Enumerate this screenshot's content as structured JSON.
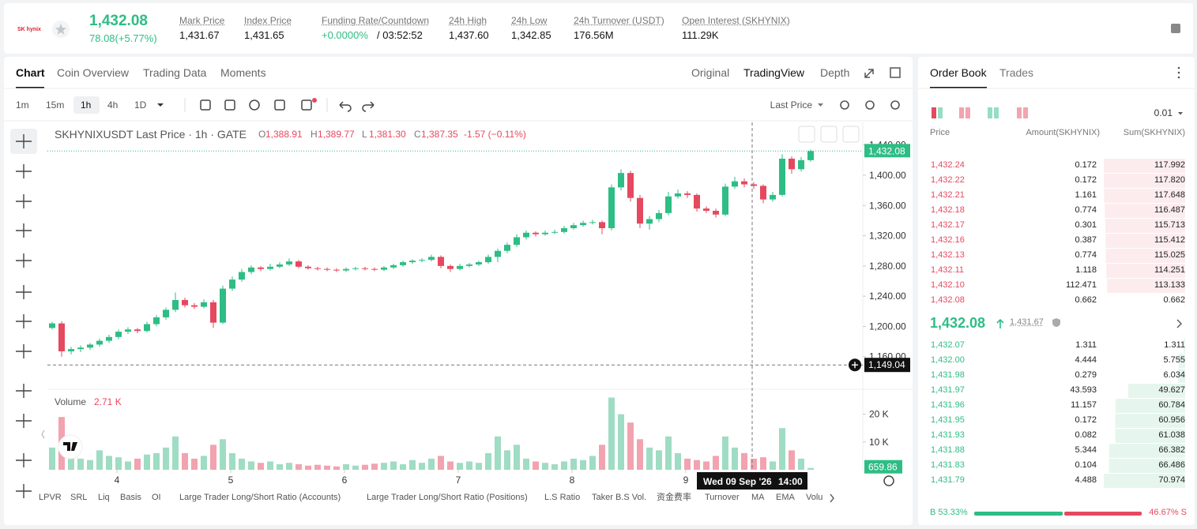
{
  "header": {
    "logo": "SK hynix",
    "price": "1,432.08",
    "change": "78.08(+5.77%)",
    "stats": [
      {
        "label": "Mark Price",
        "value": "1,431.67"
      },
      {
        "label": "Index Price",
        "value": "1,431.65"
      },
      {
        "label": "Funding Rate/Countdown",
        "value": "+0.0000%",
        "extra": "/ 03:52:52"
      },
      {
        "label": "24h High",
        "value": "1,437.60"
      },
      {
        "label": "24h Low",
        "value": "1,342.85"
      },
      {
        "label": "24h Turnover (USDT)",
        "value": "176.56M"
      },
      {
        "label": "Open Interest (SKHYNIX)",
        "value": "111.29K"
      }
    ]
  },
  "chart_tabs": [
    "Chart",
    "Coin Overview",
    "Trading Data",
    "Moments"
  ],
  "view_tabs": [
    "Original",
    "TradingView",
    "Depth"
  ],
  "intervals": [
    "1m",
    "15m",
    "1h",
    "4h",
    "1D"
  ],
  "price_source": "Last Price",
  "indicators": [
    "LPVR",
    "SRL",
    "Liq",
    "Basis",
    "OI",
    "Large Trader Long/Short Ratio (Accounts)",
    "Large Trader Long/Short Ratio (Positions)",
    "L.S Ratio",
    "Taker B.S Vol.",
    "资金费率",
    "Turnover",
    "MA",
    "EMA",
    "Volu"
  ],
  "chart_data": {
    "type": "candlestick",
    "title": "SKHYNIXUSDT Last Price · 1h · GATE",
    "legend": [
      {
        "key": "O",
        "value": "1,388.91"
      },
      {
        "key": "H",
        "value": "1,389.77"
      },
      {
        "key": "L",
        "value": "1,381.30"
      },
      {
        "key": "C",
        "value": "1,387.35"
      }
    ],
    "legend_change": "-1.57 (−0.11%)",
    "up_color": "#2ebd85",
    "down_color": "#e5495f",
    "ylim": [
      1120,
      1470
    ],
    "yticks": [
      {
        "value": 1160,
        "label": "1,160.00"
      },
      {
        "value": 1200,
        "label": "1,200.00"
      },
      {
        "value": 1240,
        "label": "1,240.00"
      },
      {
        "value": 1280,
        "label": "1,280.00"
      },
      {
        "value": 1320,
        "label": "1,320.00"
      },
      {
        "value": 1360,
        "label": "1,360.00"
      },
      {
        "value": 1400,
        "label": "1,400.00"
      },
      {
        "value": 1440,
        "label": "1,440.00"
      }
    ],
    "grid": false,
    "xticks": [
      4,
      5,
      6,
      7,
      8,
      9
    ],
    "last_price": {
      "value": 1432.08,
      "label": "1,432.08"
    },
    "crosshair": {
      "price": 1149.04,
      "price_label": "1,149.04",
      "date": "Wed 09 Sep '26",
      "time": "14:00"
    },
    "candles": [
      [
        1198,
        1206,
        1196,
        1204
      ],
      [
        1204,
        1207,
        1160,
        1167
      ],
      [
        1167,
        1173,
        1163,
        1170
      ],
      [
        1170,
        1175,
        1166,
        1172
      ],
      [
        1172,
        1178,
        1169,
        1176
      ],
      [
        1176,
        1184,
        1173,
        1181
      ],
      [
        1181,
        1189,
        1178,
        1186
      ],
      [
        1186,
        1196,
        1183,
        1193
      ],
      [
        1193,
        1199,
        1190,
        1196
      ],
      [
        1196,
        1198,
        1191,
        1194
      ],
      [
        1194,
        1206,
        1192,
        1203
      ],
      [
        1203,
        1215,
        1200,
        1212
      ],
      [
        1212,
        1225,
        1209,
        1222
      ],
      [
        1222,
        1245,
        1219,
        1235
      ],
      [
        1235,
        1238,
        1225,
        1228
      ],
      [
        1228,
        1231,
        1223,
        1226
      ],
      [
        1226,
        1236,
        1224,
        1232
      ],
      [
        1232,
        1235,
        1198,
        1205
      ],
      [
        1205,
        1254,
        1203,
        1250
      ],
      [
        1250,
        1266,
        1247,
        1262
      ],
      [
        1262,
        1276,
        1259,
        1272
      ],
      [
        1272,
        1281,
        1269,
        1278
      ],
      [
        1278,
        1280,
        1273,
        1276
      ],
      [
        1276,
        1283,
        1274,
        1279
      ],
      [
        1279,
        1285,
        1277,
        1282
      ],
      [
        1282,
        1290,
        1280,
        1286
      ],
      [
        1286,
        1288,
        1277,
        1279
      ],
      [
        1279,
        1281,
        1275,
        1277
      ],
      [
        1277,
        1279,
        1274,
        1276
      ],
      [
        1276,
        1278,
        1273,
        1275
      ],
      [
        1275,
        1277,
        1272,
        1274
      ],
      [
        1274,
        1278,
        1272,
        1276
      ],
      [
        1276,
        1279,
        1274,
        1277
      ],
      [
        1277,
        1279,
        1274,
        1276
      ],
      [
        1276,
        1278,
        1273,
        1275
      ],
      [
        1275,
        1280,
        1273,
        1278
      ],
      [
        1278,
        1283,
        1276,
        1281
      ],
      [
        1281,
        1287,
        1279,
        1285
      ],
      [
        1285,
        1289,
        1283,
        1287
      ],
      [
        1287,
        1290,
        1285,
        1288
      ],
      [
        1288,
        1295,
        1286,
        1292
      ],
      [
        1292,
        1294,
        1277,
        1280
      ],
      [
        1280,
        1282,
        1272,
        1276
      ],
      [
        1276,
        1283,
        1274,
        1280
      ],
      [
        1280,
        1284,
        1278,
        1282
      ],
      [
        1282,
        1287,
        1280,
        1285
      ],
      [
        1285,
        1295,
        1283,
        1292
      ],
      [
        1292,
        1303,
        1285,
        1300
      ],
      [
        1300,
        1311,
        1297,
        1308
      ],
      [
        1308,
        1322,
        1305,
        1318
      ],
      [
        1318,
        1327,
        1315,
        1324
      ],
      [
        1324,
        1326,
        1319,
        1322
      ],
      [
        1322,
        1327,
        1320,
        1324
      ],
      [
        1324,
        1328,
        1322,
        1325
      ],
      [
        1325,
        1333,
        1323,
        1330
      ],
      [
        1330,
        1337,
        1328,
        1334
      ],
      [
        1334,
        1340,
        1332,
        1337
      ],
      [
        1337,
        1341,
        1335,
        1338
      ],
      [
        1338,
        1340,
        1322,
        1330
      ],
      [
        1330,
        1388,
        1327,
        1384
      ],
      [
        1384,
        1408,
        1380,
        1403
      ],
      [
        1403,
        1406,
        1365,
        1370
      ],
      [
        1370,
        1374,
        1330,
        1336
      ],
      [
        1336,
        1346,
        1328,
        1342
      ],
      [
        1342,
        1354,
        1338,
        1350
      ],
      [
        1350,
        1378,
        1347,
        1372
      ],
      [
        1372,
        1381,
        1369,
        1376
      ],
      [
        1376,
        1379,
        1370,
        1374
      ],
      [
        1374,
        1376,
        1352,
        1356
      ],
      [
        1356,
        1359,
        1350,
        1353
      ],
      [
        1353,
        1356,
        1344,
        1348
      ],
      [
        1348,
        1389,
        1346,
        1385
      ],
      [
        1385,
        1398,
        1382,
        1392
      ],
      [
        1392,
        1396,
        1384,
        1388
      ],
      [
        1388,
        1391,
        1382,
        1386
      ],
      [
        1386,
        1388,
        1363,
        1368
      ],
      [
        1368,
        1378,
        1365,
        1374
      ],
      [
        1374,
        1428,
        1372,
        1422
      ],
      [
        1422,
        1425,
        1402,
        1408
      ],
      [
        1408,
        1424,
        1405,
        1420
      ],
      [
        1420,
        1434,
        1418,
        1432.08
      ]
    ],
    "volume": {
      "title": "Volume",
      "current": "2.71 K",
      "up_color": "#9fdcc4",
      "down_color": "#f2a3b0",
      "ylim": [
        0,
        27000
      ],
      "yticks": [
        {
          "value": 10000,
          "label": "10 K"
        },
        {
          "value": 20000,
          "label": "20 K"
        }
      ],
      "values": [
        8000,
        19000,
        6000,
        4000,
        3500,
        7000,
        5000,
        4500,
        3000,
        4000,
        5500,
        6000,
        8000,
        12000,
        6000,
        4000,
        5000,
        9000,
        11000,
        6000,
        4000,
        3000,
        2500,
        3000,
        2000,
        2500,
        2000,
        1500,
        1800,
        1500,
        1200,
        2000,
        1500,
        1800,
        2200,
        2500,
        3000,
        2000,
        3500,
        2500,
        4000,
        5000,
        3000,
        2500,
        3000,
        2500,
        6000,
        12000,
        7000,
        9000,
        4000,
        3000,
        2500,
        2000,
        3000,
        4000,
        3500,
        5000,
        9000,
        26000,
        20000,
        17000,
        11000,
        8000,
        7000,
        12000,
        6000,
        4000,
        3500,
        3000,
        5000,
        12000,
        8000,
        6000,
        4000,
        4500,
        3000,
        15000,
        7000,
        4000,
        659.86
      ]
    }
  },
  "order_book": {
    "tabs": [
      "Order Book",
      "Trades"
    ],
    "tick": "0.01",
    "columns": [
      "Price",
      "Amount(SKHYNIX)",
      "Sum(SKHYNIX)"
    ],
    "asks": {
      "prices": [
        "1,432.24",
        "1,432.22",
        "1,432.21",
        "1,432.18",
        "1,432.17",
        "1,432.16",
        "1,432.13",
        "1,432.11",
        "1,432.10",
        "1,432.08"
      ],
      "amounts": [
        "0.172",
        "0.172",
        "1.161",
        "0.774",
        "0.301",
        "0.387",
        "0.774",
        "1.118",
        "112.471",
        "0.662"
      ],
      "values": [
        117.992,
        117.82,
        117.648,
        116.487,
        115.713,
        115.412,
        115.025,
        114.251,
        113.133,
        0.662
      ],
      "value_labels": [
        "117.992",
        "117.820",
        "117.648",
        "116.487",
        "115.713",
        "115.412",
        "115.025",
        "114.251",
        "113.133",
        "0.662"
      ]
    },
    "mid": {
      "price": "1,432.08",
      "mark": "1,431.67"
    },
    "bids": {
      "prices": [
        "1,432.07",
        "1,432.00",
        "1,431.98",
        "1,431.97",
        "1,431.96",
        "1,431.95",
        "1,431.93",
        "1,431.88",
        "1,431.83",
        "1,431.79"
      ],
      "amounts": [
        "1.311",
        "4.444",
        "0.279",
        "43.593",
        "11.157",
        "0.172",
        "0.082",
        "5.344",
        "0.104",
        "4.488"
      ],
      "values": [
        1.311,
        5.755,
        6.034,
        49.627,
        60.784,
        60.956,
        61.038,
        66.382,
        66.486,
        70.974
      ],
      "value_labels": [
        "1.311",
        "5.755",
        "6.034",
        "49.627",
        "60.784",
        "60.956",
        "61.038",
        "66.382",
        "66.486",
        "70.974"
      ]
    },
    "ratio": {
      "buy": 53.33,
      "sell": 46.67,
      "buy_label": "B 53.33%",
      "sell_label": "46.67% S"
    }
  }
}
